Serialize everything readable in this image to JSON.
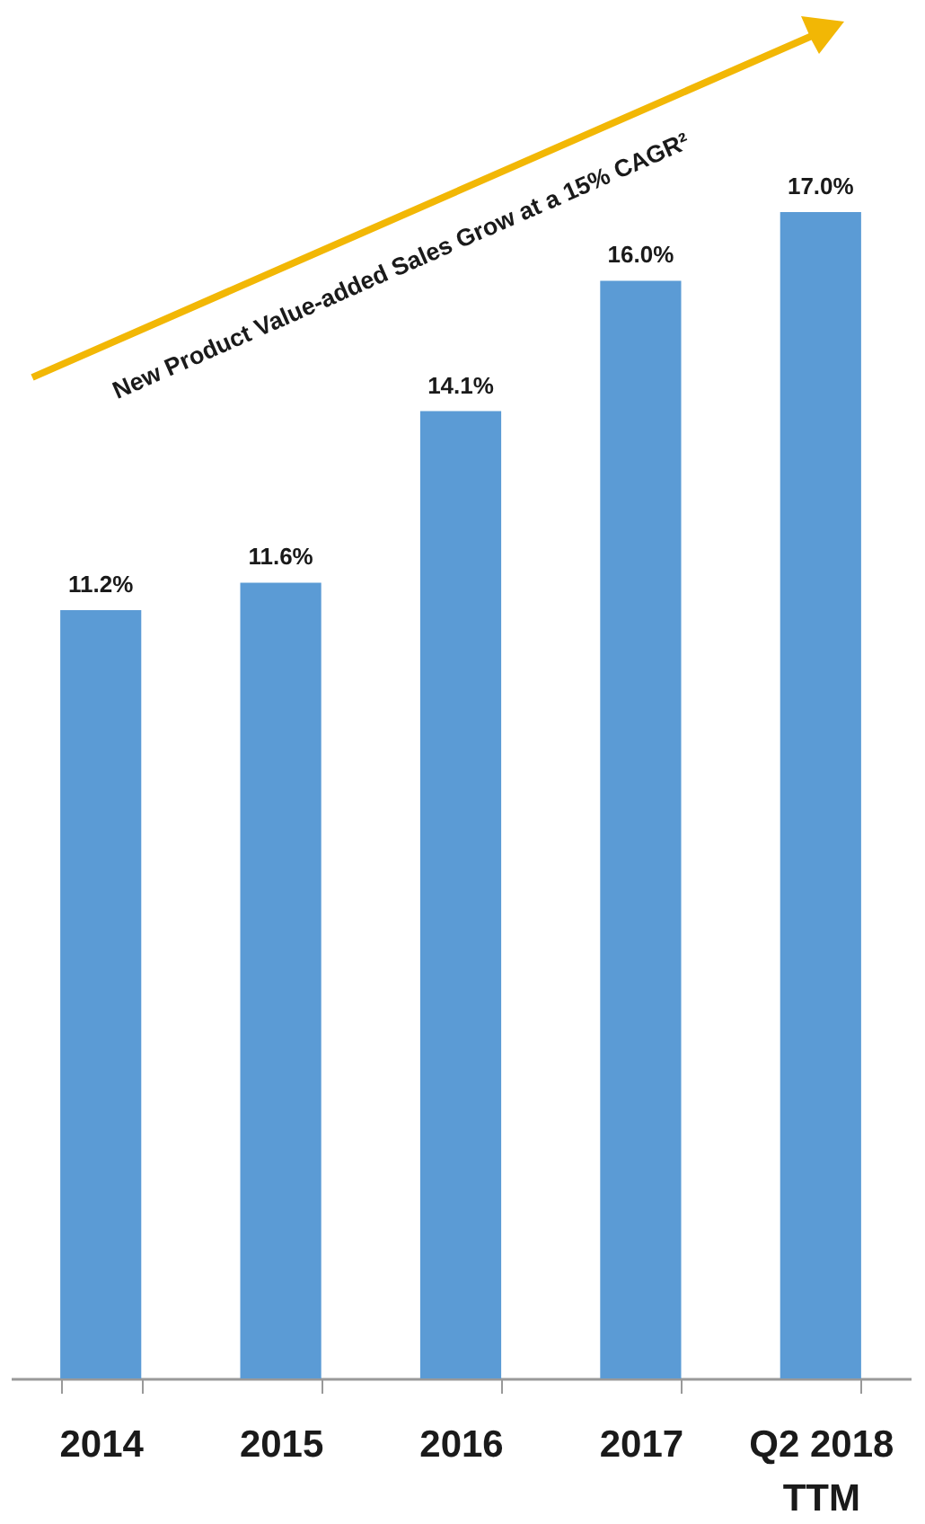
{
  "chart_data": {
    "type": "bar",
    "categories": [
      "2014",
      "2015",
      "2016",
      "2017",
      "Q2 2018\nTTM"
    ],
    "values": [
      11.2,
      11.6,
      14.1,
      16.0,
      17.0
    ],
    "value_labels": [
      "11.2%",
      "11.6%",
      "14.1%",
      "16.0%",
      "17.0%"
    ],
    "color": "#5b9bd5",
    "annotations": [
      "New Product Value-added Sales Grow at a 15% CAGR²"
    ]
  }
}
